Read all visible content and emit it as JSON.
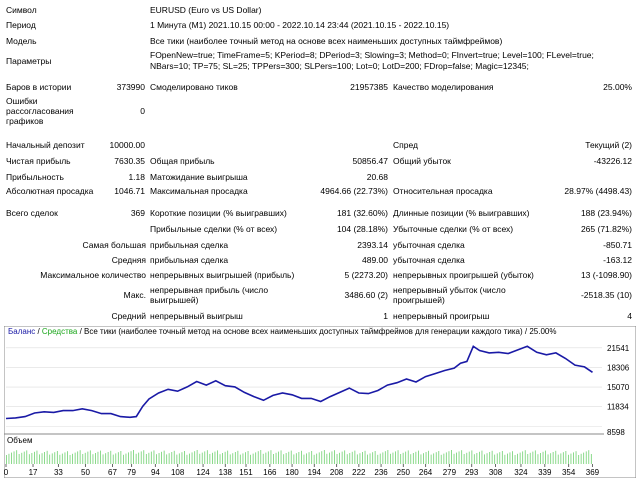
{
  "header": {
    "symbol_label": "Символ",
    "symbol_value": "EURUSD (Euro vs US Dollar)",
    "period_label": "Период",
    "period_value": "1 Минута (M1) 2021.10.15 00:00 - 2022.10.14 23:44 (2021.10.15 - 2022.10.15)",
    "model_label": "Модель",
    "model_value": "Все тики (наиболее точный метод на основе всех наименьших доступных таймфреймов)",
    "params_label": "Параметры",
    "params_line1": "FOpenNew=true; TimeFrame=5; KPeriod=8; DPeriod=3; Slowing=3; Method=0; FInvert=true; Level=100; FLevel=true;",
    "params_line2": "NBars=10; TP=75; SL=25; TPPers=300; SLPers=100; Lot=0; LotD=200; FDrop=false; Magic=12345;"
  },
  "stats": {
    "bars_label": "Баров в истории",
    "bars_value": "373990",
    "ticks_label": "Смоделировано тиков",
    "ticks_value": "21957385",
    "quality_label": "Качество моделирования",
    "quality_value": "25.00%",
    "errors_label": "Ошибки рассогласования графиков",
    "errors_value": "0",
    "deposit_label": "Начальный депозит",
    "deposit_value": "10000.00",
    "spread_label": "Спред",
    "spread_value": "Текущий (2)",
    "net_profit_label": "Чистая прибыль",
    "net_profit_value": "7630.35",
    "gross_profit_label": "Общая прибыль",
    "gross_profit_value": "50856.47",
    "gross_loss_label": "Общий убыток",
    "gross_loss_value": "-43226.12",
    "pf_label": "Прибыльность",
    "pf_value": "1.18",
    "expected_label": "Матожидание выигрыша",
    "expected_value": "20.68",
    "abs_dd_label": "Абсолютная просадка",
    "abs_dd_value": "1046.71",
    "max_dd_label": "Максимальная просадка",
    "max_dd_value": "4964.66 (22.73%)",
    "rel_dd_label": "Относительная просадка",
    "rel_dd_value": "28.97% (4498.43)",
    "total_trades_label": "Всего сделок",
    "total_trades_value": "369",
    "short_label": "Короткие позиции (% выигравших)",
    "short_value": "181 (32.60%)",
    "long_label": "Длинные позиции (% выигравших)",
    "long_value": "188 (23.94%)",
    "profit_trades_label": "Прибыльные сделки (% от всех)",
    "profit_trades_value": "104 (28.18%)",
    "loss_trades_label": "Убыточные сделки (% от всех)",
    "loss_trades_value": "265 (71.82%)",
    "largest_label": "Самая большая",
    "largest_profit_label": "прибыльная сделка",
    "largest_profit_value": "2393.14",
    "largest_loss_label": "убыточная сделка",
    "largest_loss_value": "-850.71",
    "average_label": "Средняя",
    "average_profit_label": "прибыльная сделка",
    "average_profit_value": "489.00",
    "average_loss_label": "убыточная сделка",
    "average_loss_value": "-163.12",
    "max_count_label": "Максимальное количество",
    "max_wins_label": "непрерывных выигрышей (прибыль)",
    "max_wins_value": "5 (2273.20)",
    "max_losses_label": "непрерывных проигрышей (убыток)",
    "max_losses_value": "13 (-1098.90)",
    "maximal_label": "Макс.",
    "max_cons_profit_label": "непрерывная прибыль (число выигрышей)",
    "max_cons_profit_value": "3486.60 (2)",
    "max_cons_loss_label": "непрерывный убыток (число проигрышей)",
    "max_cons_loss_value": "-2518.35 (10)",
    "avg_label": "Средний",
    "avg_wins_label": "непрерывный выигрыш",
    "avg_wins_value": "1",
    "avg_losses_label": "непрерывный проигрыш",
    "avg_losses_value": "4"
  },
  "chart_legend": {
    "balance": "Баланс",
    "sep1": " / ",
    "equity": "Средства",
    "rest": " / Все тики (наиболее точный метод на основе всех наименьших доступных таймфреймов для генерации каждого тика) / 25.00%"
  },
  "colors": {
    "balance": "#1a1aa6",
    "equity": "#1aa61a",
    "volume": "#7fd67f",
    "grid": "#dddddd"
  },
  "chart_data": {
    "type": "line",
    "title": "",
    "y_ticks": [
      8598,
      11834,
      15070,
      18306,
      21541
    ],
    "ylim": [
      8000,
      22500
    ],
    "x_ticks": [
      0,
      17,
      33,
      50,
      67,
      79,
      94,
      108,
      124,
      138,
      151,
      166,
      180,
      194,
      208,
      222,
      236,
      250,
      264,
      279,
      293,
      308,
      324,
      339,
      354,
      369
    ],
    "xlim": [
      0,
      375
    ],
    "series": [
      {
        "name": "Баланс",
        "x": [
          0,
          6,
          12,
          18,
          24,
          30,
          36,
          42,
          48,
          54,
          60,
          66,
          72,
          78,
          82,
          86,
          90,
          96,
          102,
          108,
          114,
          120,
          126,
          132,
          138,
          144,
          150,
          156,
          162,
          168,
          174,
          180,
          186,
          192,
          198,
          204,
          210,
          216,
          222,
          228,
          234,
          240,
          246,
          252,
          258,
          264,
          270,
          276,
          282,
          286,
          290,
          294,
          298,
          304,
          310,
          316,
          322,
          328,
          334,
          340,
          346,
          352,
          358,
          364,
          369
        ],
        "values": [
          10000,
          9900,
          10300,
          10700,
          11100,
          10800,
          11300,
          11100,
          11600,
          11100,
          10800,
          10600,
          10300,
          10000,
          10300,
          11800,
          13200,
          14000,
          14800,
          14300,
          15200,
          15900,
          15500,
          16000,
          15400,
          15000,
          14300,
          13400,
          13000,
          13600,
          14200,
          13700,
          13300,
          13100,
          12800,
          13400,
          14300,
          14800,
          14200,
          13900,
          14600,
          15300,
          15900,
          16300,
          16000,
          16700,
          17400,
          17700,
          18300,
          18900,
          19400,
          21700,
          21200,
          20600,
          20900,
          20500,
          21300,
          21700,
          20900,
          20300,
          20800,
          19700,
          18800,
          18300,
          17600
        ]
      }
    ],
    "volume_panel_label": "Объем"
  }
}
